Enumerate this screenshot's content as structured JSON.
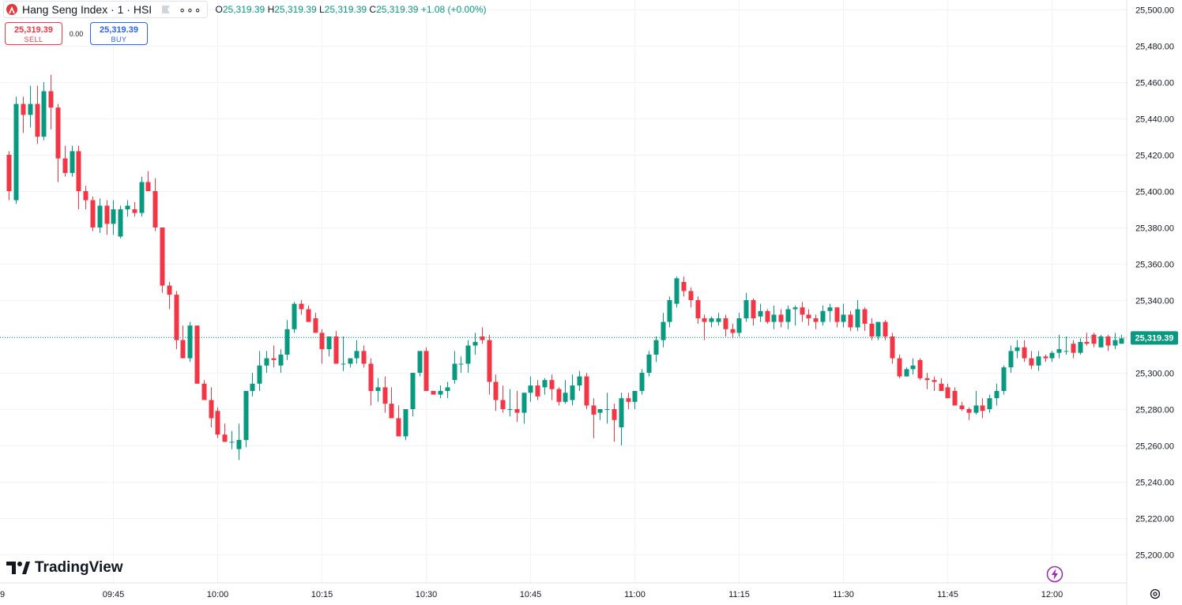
{
  "header": {
    "title": "Hang Seng Index · 1 · HSI",
    "ohlc": [
      {
        "label": "O",
        "value": "25,319.39"
      },
      {
        "label": "H",
        "value": "25,319.39"
      },
      {
        "label": "L",
        "value": "25,319.39"
      },
      {
        "label": "C",
        "value": "25,319.39"
      }
    ],
    "change": "+1.08 (+0.00%)"
  },
  "trade": {
    "sell_price": "25,319.39",
    "sell_label": "SELL",
    "spread": "0.00",
    "buy_price": "25,319.39",
    "buy_label": "BUY"
  },
  "brand": "TradingView",
  "colors": {
    "up": "#089981",
    "down": "#f23645",
    "grid": "#f0f3fa"
  },
  "chart_data": {
    "type": "candlestick",
    "title": "Hang Seng Index · 1 · HSI",
    "ylim": [
      25190,
      25505
    ],
    "y_ticks": [
      25200,
      25220,
      25240,
      25260,
      25280,
      25300,
      25320,
      25340,
      25360,
      25380,
      25400,
      25420,
      25440,
      25460,
      25480,
      25500
    ],
    "y_tick_labels": [
      "25,200.00",
      "25,220.00",
      "25,240.00",
      "25,260.00",
      "25,280.00",
      "25,300.00",
      "25,320.00",
      "25,340.00",
      "25,360.00",
      "25,380.00",
      "25,400.00",
      "25,420.00",
      "25,440.00",
      "25,460.00",
      "25,480.00",
      "25,500.00"
    ],
    "x_ticks": [
      {
        "label": "9",
        "minute": 0
      },
      {
        "label": "09:45",
        "minute": 16
      },
      {
        "label": "10:00",
        "minute": 31
      },
      {
        "label": "10:15",
        "minute": 46
      },
      {
        "label": "10:30",
        "minute": 61
      },
      {
        "label": "10:45",
        "minute": 76
      },
      {
        "label": "11:00",
        "minute": 91
      },
      {
        "label": "11:15",
        "minute": 106
      },
      {
        "label": "11:30",
        "minute": 121
      },
      {
        "label": "11:45",
        "minute": 136
      },
      {
        "label": "12:00",
        "minute": 151
      }
    ],
    "first_minute": 1,
    "last_price": 25319.39,
    "last_price_label": "25,319.39",
    "grid": true,
    "candles": [
      [
        25420,
        25422,
        25395,
        25400
      ],
      [
        25395,
        25452,
        25393,
        25448
      ],
      [
        25448,
        25452,
        25432,
        25442
      ],
      [
        25442,
        25458,
        25435,
        25448
      ],
      [
        25448,
        25458,
        25426,
        25430
      ],
      [
        25430,
        25460,
        25428,
        25455
      ],
      [
        25455,
        25464,
        25434,
        25446
      ],
      [
        25446,
        25448,
        25405,
        25418
      ],
      [
        25418,
        25425,
        25408,
        25410
      ],
      [
        25410,
        25425,
        25408,
        25422
      ],
      [
        25422,
        25425,
        25390,
        25400
      ],
      [
        25400,
        25403,
        25390,
        25395
      ],
      [
        25395,
        25397,
        25378,
        25380
      ],
      [
        25380,
        25396,
        25377,
        25392
      ],
      [
        25392,
        25395,
        25376,
        25382
      ],
      [
        25382,
        25395,
        25376,
        25390
      ],
      [
        25375,
        25392,
        25374,
        25390
      ],
      [
        25390,
        25395,
        25386,
        25392
      ],
      [
        25390,
        25394,
        25386,
        25388
      ],
      [
        25388,
        25408,
        25386,
        25405
      ],
      [
        25405,
        25411,
        25400,
        25400
      ],
      [
        25400,
        25407,
        25378,
        25380
      ],
      [
        25380,
        25380,
        25344,
        25348
      ],
      [
        25348,
        25350,
        25335,
        25343
      ],
      [
        25343,
        25345,
        25313,
        25318
      ],
      [
        25318,
        25326,
        25308,
        25308
      ],
      [
        25308,
        25328,
        25306,
        25326
      ],
      [
        25326,
        25326,
        25294,
        25294
      ],
      [
        25294,
        25296,
        25285,
        25285
      ],
      [
        25285,
        25292,
        25270,
        25275
      ],
      [
        25279,
        25281,
        25264,
        25266
      ],
      [
        25266,
        25272,
        25262,
        25262
      ],
      [
        25262,
        25268,
        25258,
        25262
      ],
      [
        25258,
        25272,
        25252,
        25263
      ],
      [
        25263,
        25290,
        25259,
        25290
      ],
      [
        25290,
        25300,
        25287,
        25294
      ],
      [
        25294,
        25312,
        25290,
        25304
      ],
      [
        25304,
        25312,
        25300,
        25308
      ],
      [
        25308,
        25315,
        25303,
        25307
      ],
      [
        25304,
        25313,
        25300,
        25310
      ],
      [
        25310,
        25329,
        25307,
        25324
      ],
      [
        25324,
        25339,
        25322,
        25338
      ],
      [
        25338,
        25340,
        25332,
        25335
      ],
      [
        25335,
        25337,
        25328,
        25328
      ],
      [
        25330,
        25333,
        25322,
        25322
      ],
      [
        25322,
        25324,
        25305,
        25313
      ],
      [
        25313,
        25320,
        25309,
        25320
      ],
      [
        25320,
        25323,
        25305,
        25305
      ],
      [
        25305,
        25320,
        25301,
        25305
      ],
      [
        25305,
        25308,
        25303,
        25308
      ],
      [
        25308,
        25318,
        25305,
        25312
      ],
      [
        25312,
        25315,
        25303,
        25305
      ],
      [
        25305,
        25308,
        25282,
        25290
      ],
      [
        25290,
        25297,
        25284,
        25292
      ],
      [
        25292,
        25298,
        25278,
        25283
      ],
      [
        25283,
        25292,
        25275,
        25275
      ],
      [
        25275,
        25282,
        25265,
        25265
      ],
      [
        25265,
        25280,
        25263,
        25280
      ],
      [
        25280,
        25300,
        25276,
        25300
      ],
      [
        25300,
        25312,
        25298,
        25312
      ],
      [
        25312,
        25314,
        25290,
        25290
      ],
      [
        25290,
        25290,
        25288,
        25288
      ],
      [
        25288,
        25293,
        25286,
        25290
      ],
      [
        25290,
        25295,
        25286,
        25292
      ],
      [
        25296,
        25312,
        25294,
        25305
      ],
      [
        25305,
        25309,
        25300,
        25305
      ],
      [
        25305,
        25318,
        25300,
        25315
      ],
      [
        25315,
        25322,
        25310,
        25317
      ],
      [
        25320,
        25325,
        25316,
        25318
      ],
      [
        25318,
        25321,
        25288,
        25295
      ],
      [
        25295,
        25299,
        25279,
        25285
      ],
      [
        25285,
        25293,
        25278,
        25280
      ],
      [
        25280,
        25291,
        25276,
        25280
      ],
      [
        25280,
        25290,
        25273,
        25278
      ],
      [
        25278,
        25289,
        25272,
        25289
      ],
      [
        25289,
        25298,
        25284,
        25293
      ],
      [
        25293,
        25296,
        25285,
        25287
      ],
      [
        25292,
        25297,
        25288,
        25296
      ],
      [
        25296,
        25299,
        25285,
        25291
      ],
      [
        25291,
        25292,
        25282,
        25284
      ],
      [
        25284,
        25296,
        25283,
        25289
      ],
      [
        25285,
        25299,
        25282,
        25293
      ],
      [
        25293,
        25301,
        25290,
        25298
      ],
      [
        25298,
        25300,
        25280,
        25282
      ],
      [
        25282,
        25286,
        25264,
        25277
      ],
      [
        25278,
        25280,
        25274,
        25280
      ],
      [
        25280,
        25289,
        25272,
        25280
      ],
      [
        25280,
        25283,
        25262,
        25274
      ],
      [
        25270,
        25289,
        25260,
        25286
      ],
      [
        25286,
        25289,
        25280,
        25284
      ],
      [
        25284,
        25290,
        25280,
        25290
      ],
      [
        25290,
        25302,
        25288,
        25300
      ],
      [
        25300,
        25312,
        25298,
        25310
      ],
      [
        25310,
        25320,
        25306,
        25318
      ],
      [
        25318,
        25333,
        25314,
        25328
      ],
      [
        25328,
        25342,
        25325,
        25340
      ],
      [
        25338,
        25353,
        25336,
        25352
      ],
      [
        25350,
        25353,
        25342,
        25345
      ],
      [
        25345,
        25347,
        25336,
        25340
      ],
      [
        25340,
        25342,
        25327,
        25330
      ],
      [
        25330,
        25332,
        25318,
        25328
      ],
      [
        25328,
        25331,
        25325,
        25330
      ],
      [
        25328,
        25333,
        25326,
        25330
      ],
      [
        25330,
        25332,
        25320,
        25324
      ],
      [
        25324,
        25327,
        25319,
        25322
      ],
      [
        25322,
        25333,
        25320,
        25330
      ],
      [
        25330,
        25344,
        25328,
        25340
      ],
      [
        25340,
        25341,
        25326,
        25330
      ],
      [
        25331,
        25338,
        25328,
        25334
      ],
      [
        25334,
        25335,
        25327,
        25328
      ],
      [
        25328,
        25337,
        25324,
        25332
      ],
      [
        25332,
        25335,
        25325,
        25328
      ],
      [
        25328,
        25337,
        25324,
        25335
      ],
      [
        25335,
        25337,
        25326,
        25336
      ],
      [
        25336,
        25339,
        25328,
        25332
      ],
      [
        25332,
        25335,
        25326,
        25330
      ],
      [
        25330,
        25332,
        25324,
        25328
      ],
      [
        25328,
        25337,
        25326,
        25334
      ],
      [
        25334,
        25338,
        25328,
        25336
      ],
      [
        25336,
        25336,
        25325,
        25328
      ],
      [
        25328,
        25338,
        25325,
        25332
      ],
      [
        25332,
        25334,
        25323,
        25325
      ],
      [
        25325,
        25340,
        25323,
        25335
      ],
      [
        25335,
        25336,
        25323,
        25327
      ],
      [
        25327,
        25330,
        25318,
        25320
      ],
      [
        25320,
        25328,
        25318,
        25328
      ],
      [
        25328,
        25329,
        25318,
        25320
      ],
      [
        25320,
        25322,
        25305,
        25308
      ],
      [
        25308,
        25310,
        25297,
        25298
      ],
      [
        25298,
        25303,
        25298,
        25302
      ],
      [
        25302,
        25308,
        25299,
        25304
      ],
      [
        25307,
        25308,
        25296,
        25297
      ],
      [
        25297,
        25300,
        25291,
        25296
      ],
      [
        25296,
        25298,
        25290,
        25295
      ],
      [
        25294,
        25297,
        25290,
        25290
      ],
      [
        25292,
        25294,
        25286,
        25286
      ],
      [
        25290,
        25292,
        25282,
        25282
      ],
      [
        25282,
        25284,
        25279,
        25280
      ],
      [
        25280,
        25281,
        25274,
        25278
      ],
      [
        25278,
        25290,
        25277,
        25282
      ],
      [
        25282,
        25286,
        25275,
        25279
      ],
      [
        25280,
        25288,
        25278,
        25286
      ],
      [
        25286,
        25294,
        25282,
        25290
      ],
      [
        25290,
        25304,
        25288,
        25303
      ],
      [
        25303,
        25315,
        25300,
        25312
      ],
      [
        25312,
        25318,
        25308,
        25314
      ],
      [
        25314,
        25318,
        25306,
        25308
      ],
      [
        25308,
        25312,
        25302,
        25304
      ],
      [
        25304,
        25312,
        25301,
        25309
      ],
      [
        25309,
        25310,
        25306,
        25308
      ],
      [
        25308,
        25312,
        25306,
        25311
      ],
      [
        25311,
        25321,
        25308,
        25313
      ],
      [
        25312,
        25320,
        25310,
        25312
      ],
      [
        25316,
        25318,
        25308,
        25311
      ],
      [
        25311,
        25319,
        25310,
        25317
      ],
      [
        25317,
        25322,
        25315,
        25316
      ],
      [
        25321,
        25322,
        25314,
        25316
      ],
      [
        25314,
        25321,
        25314,
        25320
      ],
      [
        25320,
        25321,
        25312,
        25315
      ],
      [
        25315,
        25322,
        25313,
        25318
      ],
      [
        25316,
        25321,
        25316,
        25319
      ]
    ]
  }
}
